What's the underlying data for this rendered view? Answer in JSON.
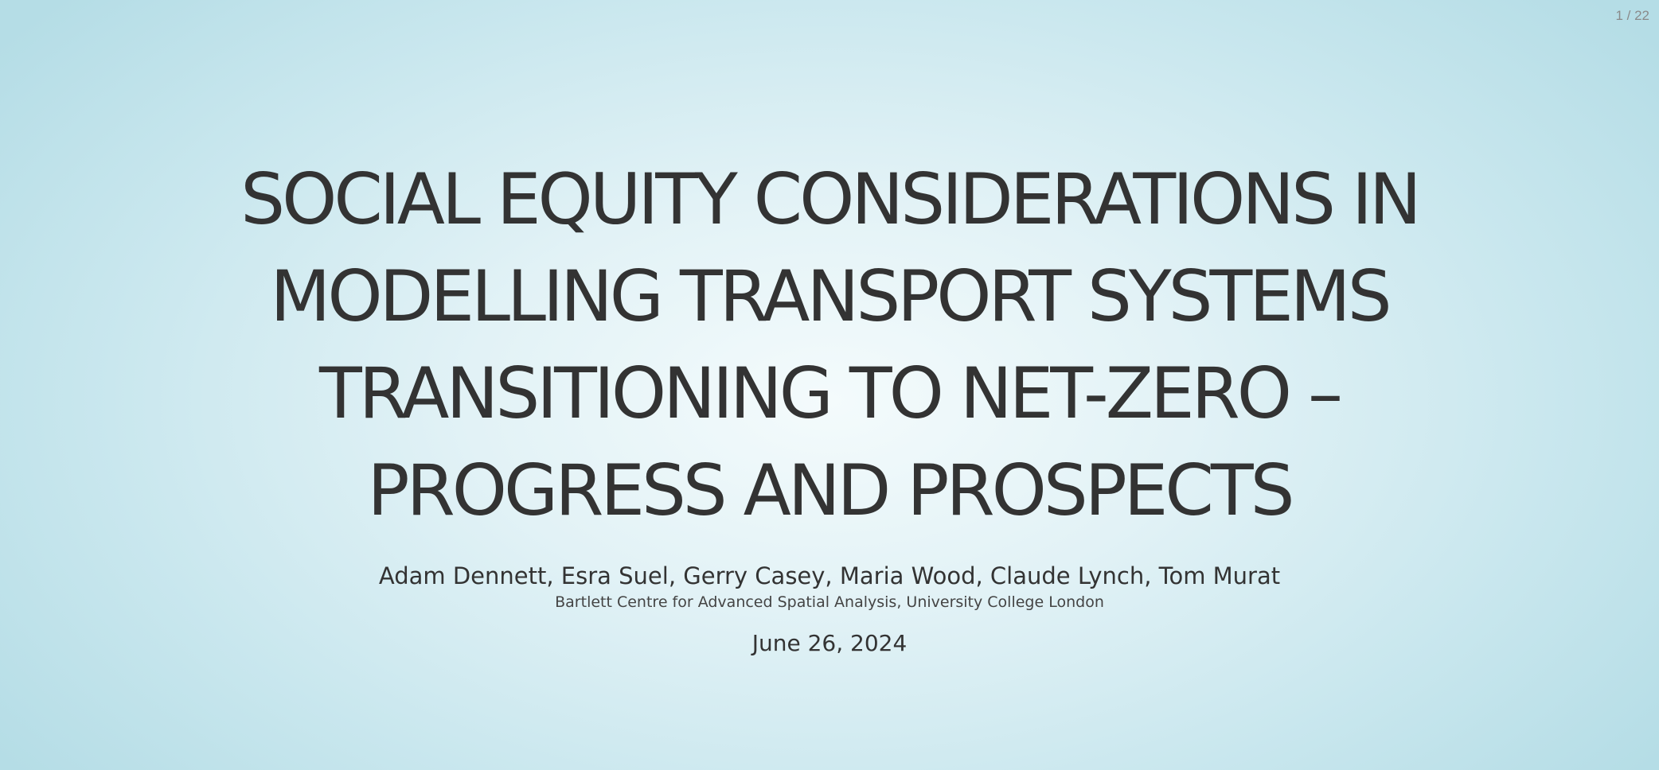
{
  "slide": {
    "counter": "1 / 22",
    "title": "SOCIAL EQUITY CONSIDERATIONS IN MODELLING TRANSPORT SYSTEMS TRANSITIONING TO NET-ZERO – PROGRESS AND PROSPECTS",
    "authors": "Adam Dennett, Esra Suel, Gerry Casey, Maria Wood, Claude Lynch, Tom Murat",
    "institute": "Bartlett Centre for Advanced Spatial Analysis, University College London",
    "date": "June 26, 2024"
  },
  "colors": {
    "text": "#333333",
    "background_center": "#f4fbfc",
    "background_edge": "#b5dde6"
  }
}
